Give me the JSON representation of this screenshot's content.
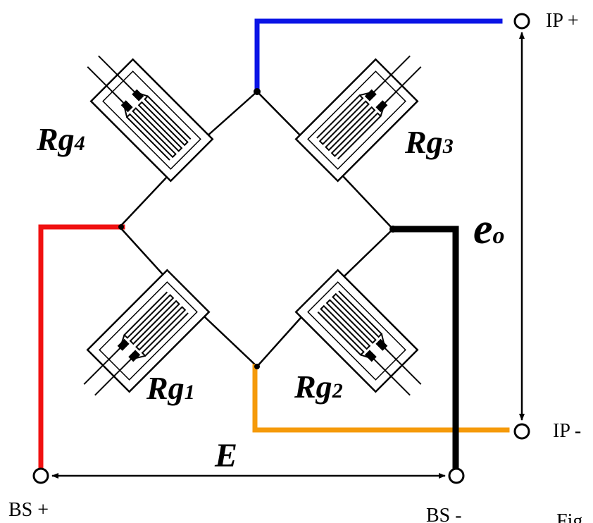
{
  "labels": {
    "ip_plus": "IP +",
    "ip_minus": "IP -",
    "bs_plus": "BS +",
    "bs_minus": "BS -",
    "gauge_1": {
      "main": "Rg",
      "sub": "1"
    },
    "gauge_2": {
      "main": "Rg",
      "sub": "2"
    },
    "gauge_3": {
      "main": "Rg",
      "sub": "3"
    },
    "gauge_4": {
      "main": "Rg",
      "sub": "4"
    },
    "output_voltage": {
      "main": "e",
      "sub": "o"
    },
    "excitation": "E",
    "figure_caption_fragment": "Fig"
  },
  "colors": {
    "ip_plus_wire": "#0a14e6",
    "bs_plus_wire": "#f01010",
    "ip_minus_wire": "#f59a0a",
    "bs_minus_wire": "#000000",
    "bridge_line": "#000000"
  }
}
